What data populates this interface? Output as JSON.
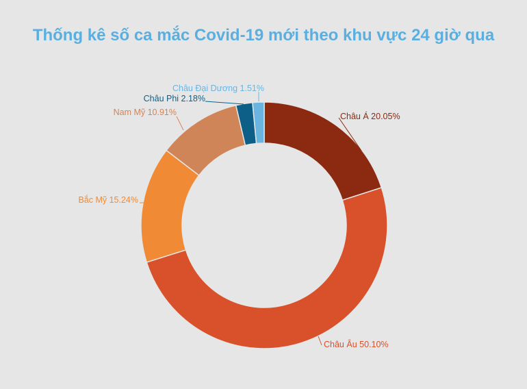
{
  "title": "Thống kê số ca mắc Covid-19 mới theo khu vực 24 giờ qua",
  "chart_data": {
    "type": "pie",
    "variant": "donut",
    "title": "Thống kê số ca mắc Covid-19 mới theo khu vực 24 giờ qua",
    "categories": [
      "Châu Á",
      "Châu Âu",
      "Bắc Mỹ",
      "Nam Mỹ",
      "Châu Phi",
      "Châu Đại Dương"
    ],
    "values": [
      20.05,
      50.1,
      15.24,
      10.91,
      2.18,
      1.51
    ],
    "unit": "%",
    "colors": [
      "#8b2a10",
      "#d9512a",
      "#f08a35",
      "#d08558",
      "#0e5f87",
      "#6ab5e0"
    ],
    "labels": [
      {
        "text": "Châu Á 20.05%",
        "color": "#8b2a10"
      },
      {
        "text": "Châu Âu 50.10%",
        "color": "#d9512a"
      },
      {
        "text": "Bắc Mỹ 15.24%",
        "color": "#f08a35"
      },
      {
        "text": "Nam Mỹ 10.91%",
        "color": "#d08558"
      },
      {
        "text": "Châu Phi  2.18%",
        "color": "#0e5f87"
      },
      {
        "text": "Châu Đại Dương 1.51%",
        "color": "#6ab5e0"
      }
    ],
    "legend": "none (labels on slices)"
  }
}
